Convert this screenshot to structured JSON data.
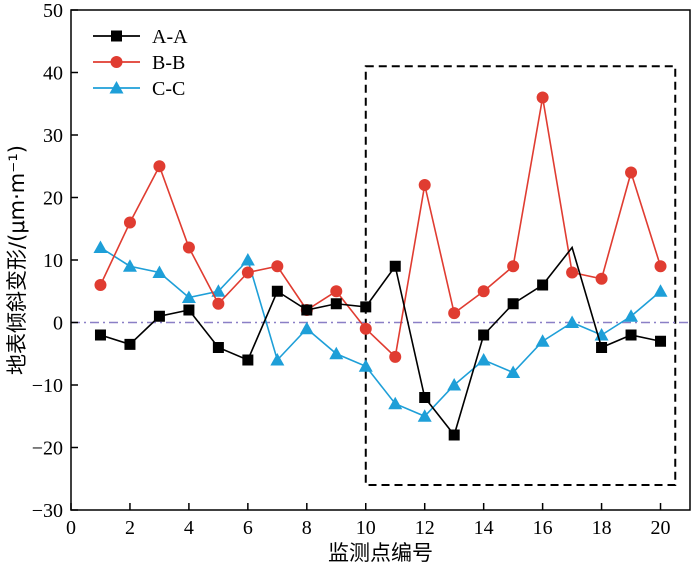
{
  "chart_data": {
    "type": "line",
    "xlabel": "监测点编号",
    "ylabel": "地表倾斜变形/(μm·m⁻¹)",
    "xlim": [
      0,
      21
    ],
    "ylim": [
      -30,
      50
    ],
    "xticks": [
      0,
      2,
      4,
      6,
      8,
      10,
      12,
      14,
      16,
      18,
      20
    ],
    "yticks": [
      -30,
      -20,
      -10,
      0,
      10,
      20,
      30,
      40,
      50
    ],
    "xtick_labels": [
      "0",
      "2",
      "4",
      "6",
      "8",
      "10",
      "12",
      "14",
      "16",
      "18",
      "20"
    ],
    "ytick_labels": [
      "−30",
      "−20",
      "−10",
      "0",
      "10",
      "20",
      "30",
      "40",
      "50"
    ],
    "grid": false,
    "legend_position": "top-left",
    "x": [
      1,
      2,
      3,
      4,
      5,
      6,
      7,
      8,
      9,
      10,
      11,
      12,
      13,
      14,
      15,
      16,
      17,
      18,
      19,
      20
    ],
    "series": [
      {
        "name": "A-A",
        "color": "#000000",
        "marker": "square",
        "values": [
          -2,
          -3.5,
          1,
          2,
          -4,
          -6,
          5,
          2,
          3,
          2.5,
          9,
          -12,
          -18,
          -2,
          3,
          6,
          12,
          -4,
          -2,
          -3
        ],
        "hidden_marker_indices": [
          16
        ]
      },
      {
        "name": "B-B",
        "color": "#e03c31",
        "marker": "circle",
        "values": [
          6,
          16,
          25,
          12,
          3,
          8,
          9,
          2,
          5,
          -1,
          -5.5,
          22,
          1.5,
          5,
          9,
          36,
          8,
          7,
          24,
          9
        ]
      },
      {
        "name": "C-C",
        "color": "#1e9fd8",
        "marker": "triangle",
        "values": [
          12,
          9,
          8,
          4,
          5,
          10,
          -6,
          -1,
          -5,
          -7,
          -13,
          -15,
          -10,
          -6,
          -8,
          -3,
          0,
          -2,
          1,
          5
        ]
      }
    ],
    "reference_line": {
      "y": 0,
      "color": "#8a7fc6",
      "style": "dash-dot"
    },
    "highlight_box": {
      "x": [
        10,
        20.5
      ],
      "y": [
        -26,
        41
      ],
      "color": "#000000",
      "style": "dashed"
    }
  }
}
